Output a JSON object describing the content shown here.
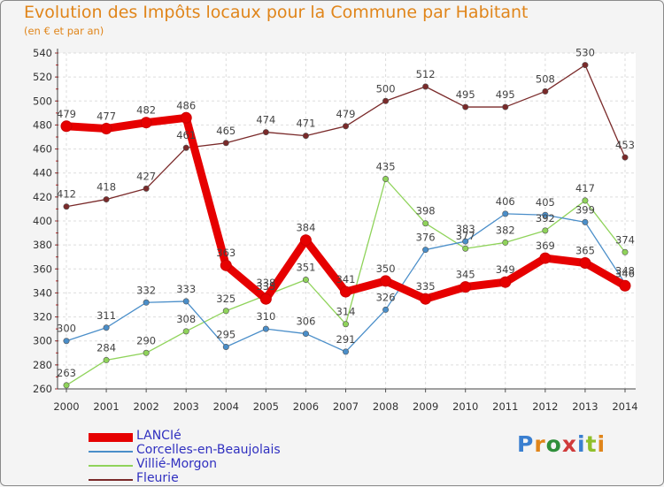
{
  "title": "Evolution des Impôts locaux pour la Commune par Habitant",
  "subtitle": "(en € et par an)",
  "logo_text": "Proxiti",
  "chart_data": {
    "type": "line",
    "title": "Evolution des Impôts locaux pour la Commune par Habitant",
    "subtitle": "(en € et par an)",
    "xlabel": "",
    "ylabel": "",
    "ylim": [
      260,
      540
    ],
    "yticks": [
      260,
      280,
      300,
      320,
      340,
      360,
      380,
      400,
      420,
      440,
      460,
      480,
      500,
      520,
      540
    ],
    "categories": [
      "2000",
      "2001",
      "2002",
      "2003",
      "2004",
      "2005",
      "2006",
      "2007",
      "2008",
      "2009",
      "2010",
      "2011",
      "2012",
      "2013",
      "2014"
    ],
    "grid": true,
    "legend_position": "bottom-left",
    "series": [
      {
        "name": "LANCIé",
        "color": "#e60000",
        "values": [
          479,
          477,
          482,
          486,
          363,
          335,
          384,
          341,
          350,
          335,
          345,
          349,
          369,
          365,
          346
        ]
      },
      {
        "name": "Corcelles-en-Beaujolais",
        "color": "#4a8ec9",
        "values": [
          300,
          311,
          332,
          333,
          295,
          310,
          306,
          291,
          326,
          376,
          383,
          406,
          405,
          399,
          348
        ]
      },
      {
        "name": "Villié-Morgon",
        "color": "#8fd35a",
        "values": [
          263,
          284,
          290,
          308,
          325,
          338,
          351,
          314,
          435,
          398,
          377,
          382,
          392,
          417,
          374
        ]
      },
      {
        "name": "Fleurie",
        "color": "#7a2a2a",
        "values": [
          412,
          418,
          427,
          461,
          465,
          474,
          471,
          479,
          500,
          512,
          495,
          495,
          508,
          530,
          453
        ]
      }
    ]
  }
}
